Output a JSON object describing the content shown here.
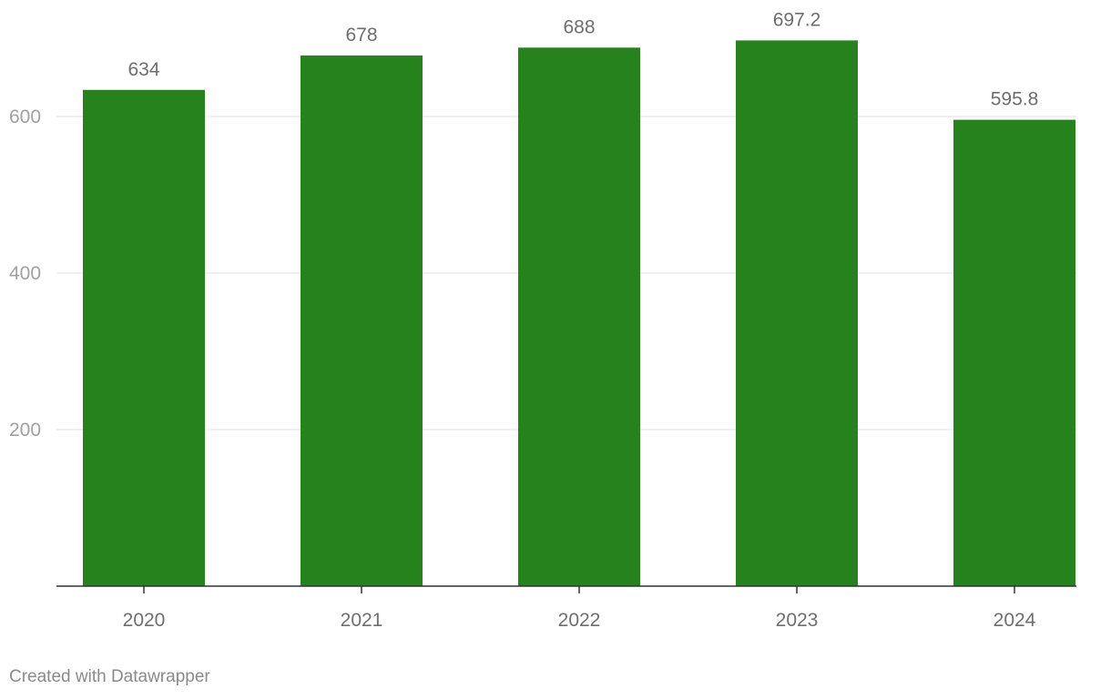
{
  "chart_data": {
    "type": "bar",
    "categories": [
      "2020",
      "2021",
      "2022",
      "2023",
      "2024"
    ],
    "values": [
      634,
      678,
      688,
      697.2,
      595.8
    ],
    "value_labels": [
      "634",
      "678",
      "688",
      "697.2",
      "595.8"
    ],
    "title": "",
    "xlabel": "",
    "ylabel": "",
    "ylim": [
      0,
      750
    ],
    "yticks": [
      200,
      400,
      600
    ],
    "grid": true,
    "bar_color": "#26821c"
  },
  "footer": {
    "credit": "Created with Datawrapper"
  }
}
